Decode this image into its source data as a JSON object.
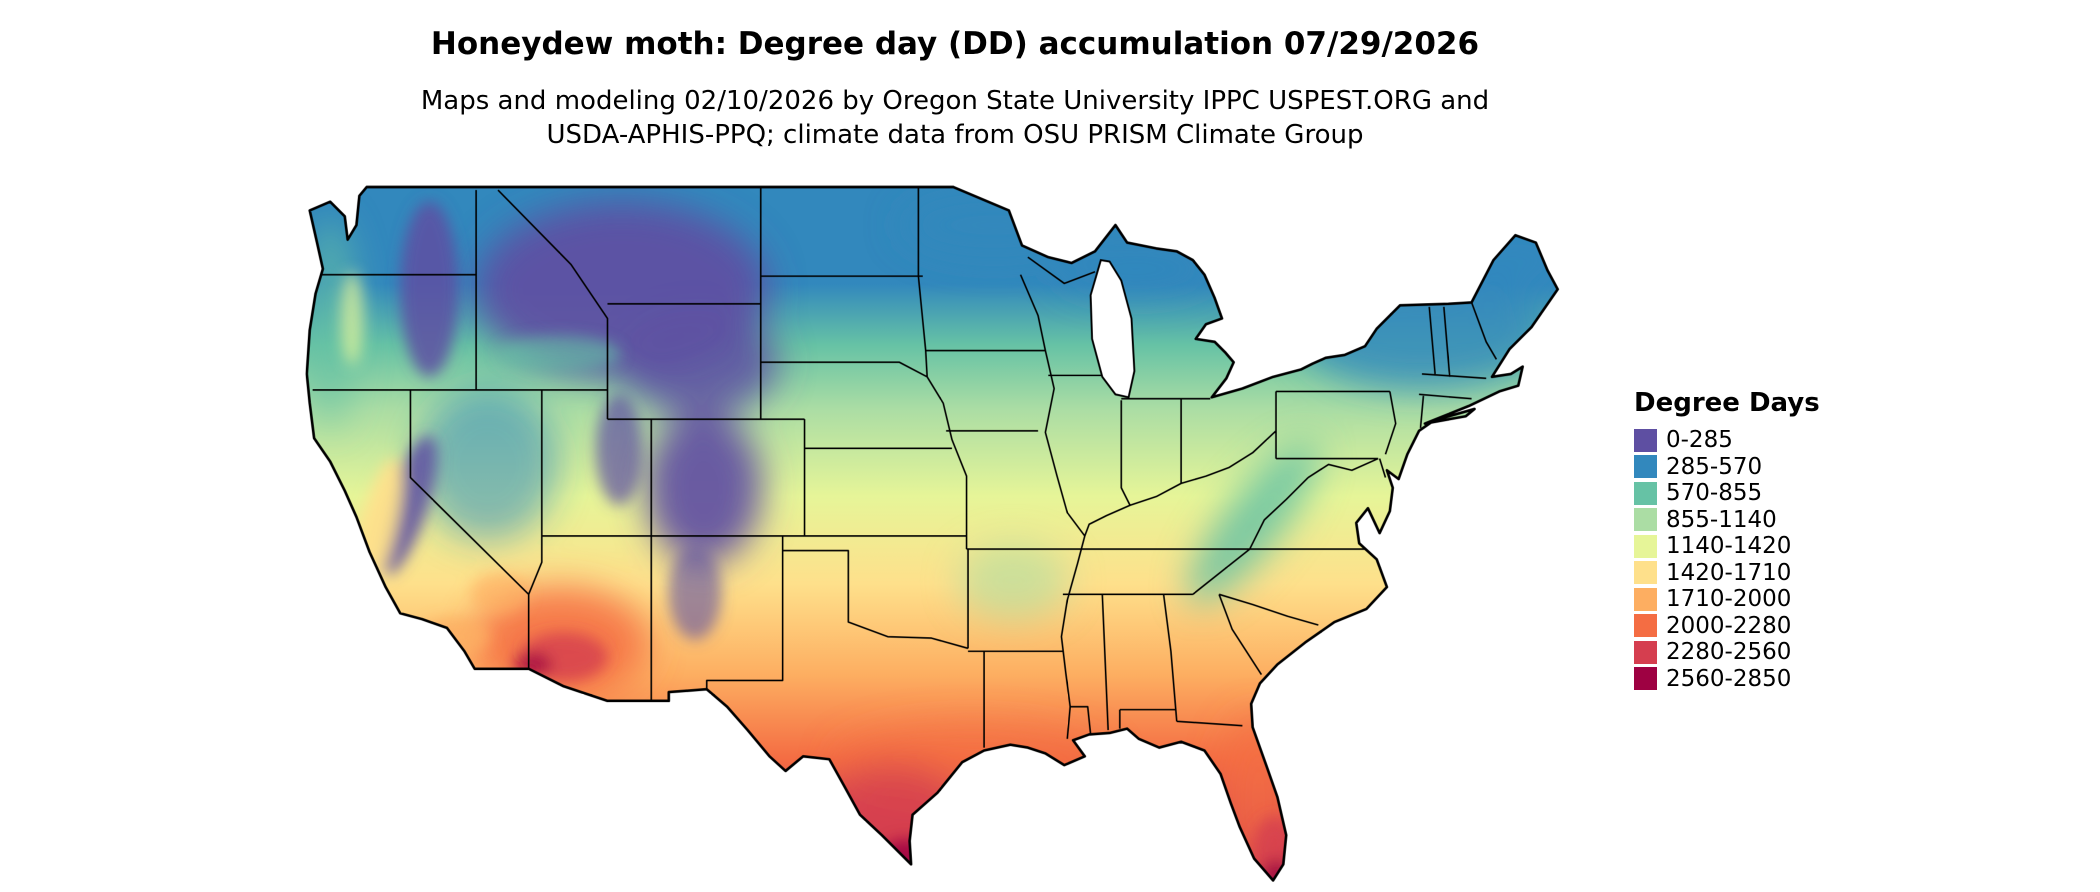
{
  "title": "Honeydew moth: Degree day (DD) accumulation 07/29/2026",
  "subtitle_line1": "Maps and modeling 02/10/2026 by Oregon State University IPPC USPEST.ORG and",
  "subtitle_line2": "USDA-APHIS-PPQ; climate data from OSU PRISM Climate Group",
  "legend": {
    "title": "Degree Days",
    "entries": [
      {
        "label": "0-285",
        "color": "#5e4fa2"
      },
      {
        "label": "285-570",
        "color": "#3288bd"
      },
      {
        "label": "570-855",
        "color": "#66c2a5"
      },
      {
        "label": "855-1140",
        "color": "#abdda4"
      },
      {
        "label": "1140-1420",
        "color": "#e6f598"
      },
      {
        "label": "1420-1710",
        "color": "#fee08b"
      },
      {
        "label": "1710-2000",
        "color": "#fdae61"
      },
      {
        "label": "2000-2280",
        "color": "#f46d43"
      },
      {
        "label": "2280-2560",
        "color": "#d53e4f"
      },
      {
        "label": "2560-2850",
        "color": "#9e0142"
      }
    ]
  },
  "map": {
    "outline_color": "#000000",
    "background_color": "#ffffff"
  }
}
